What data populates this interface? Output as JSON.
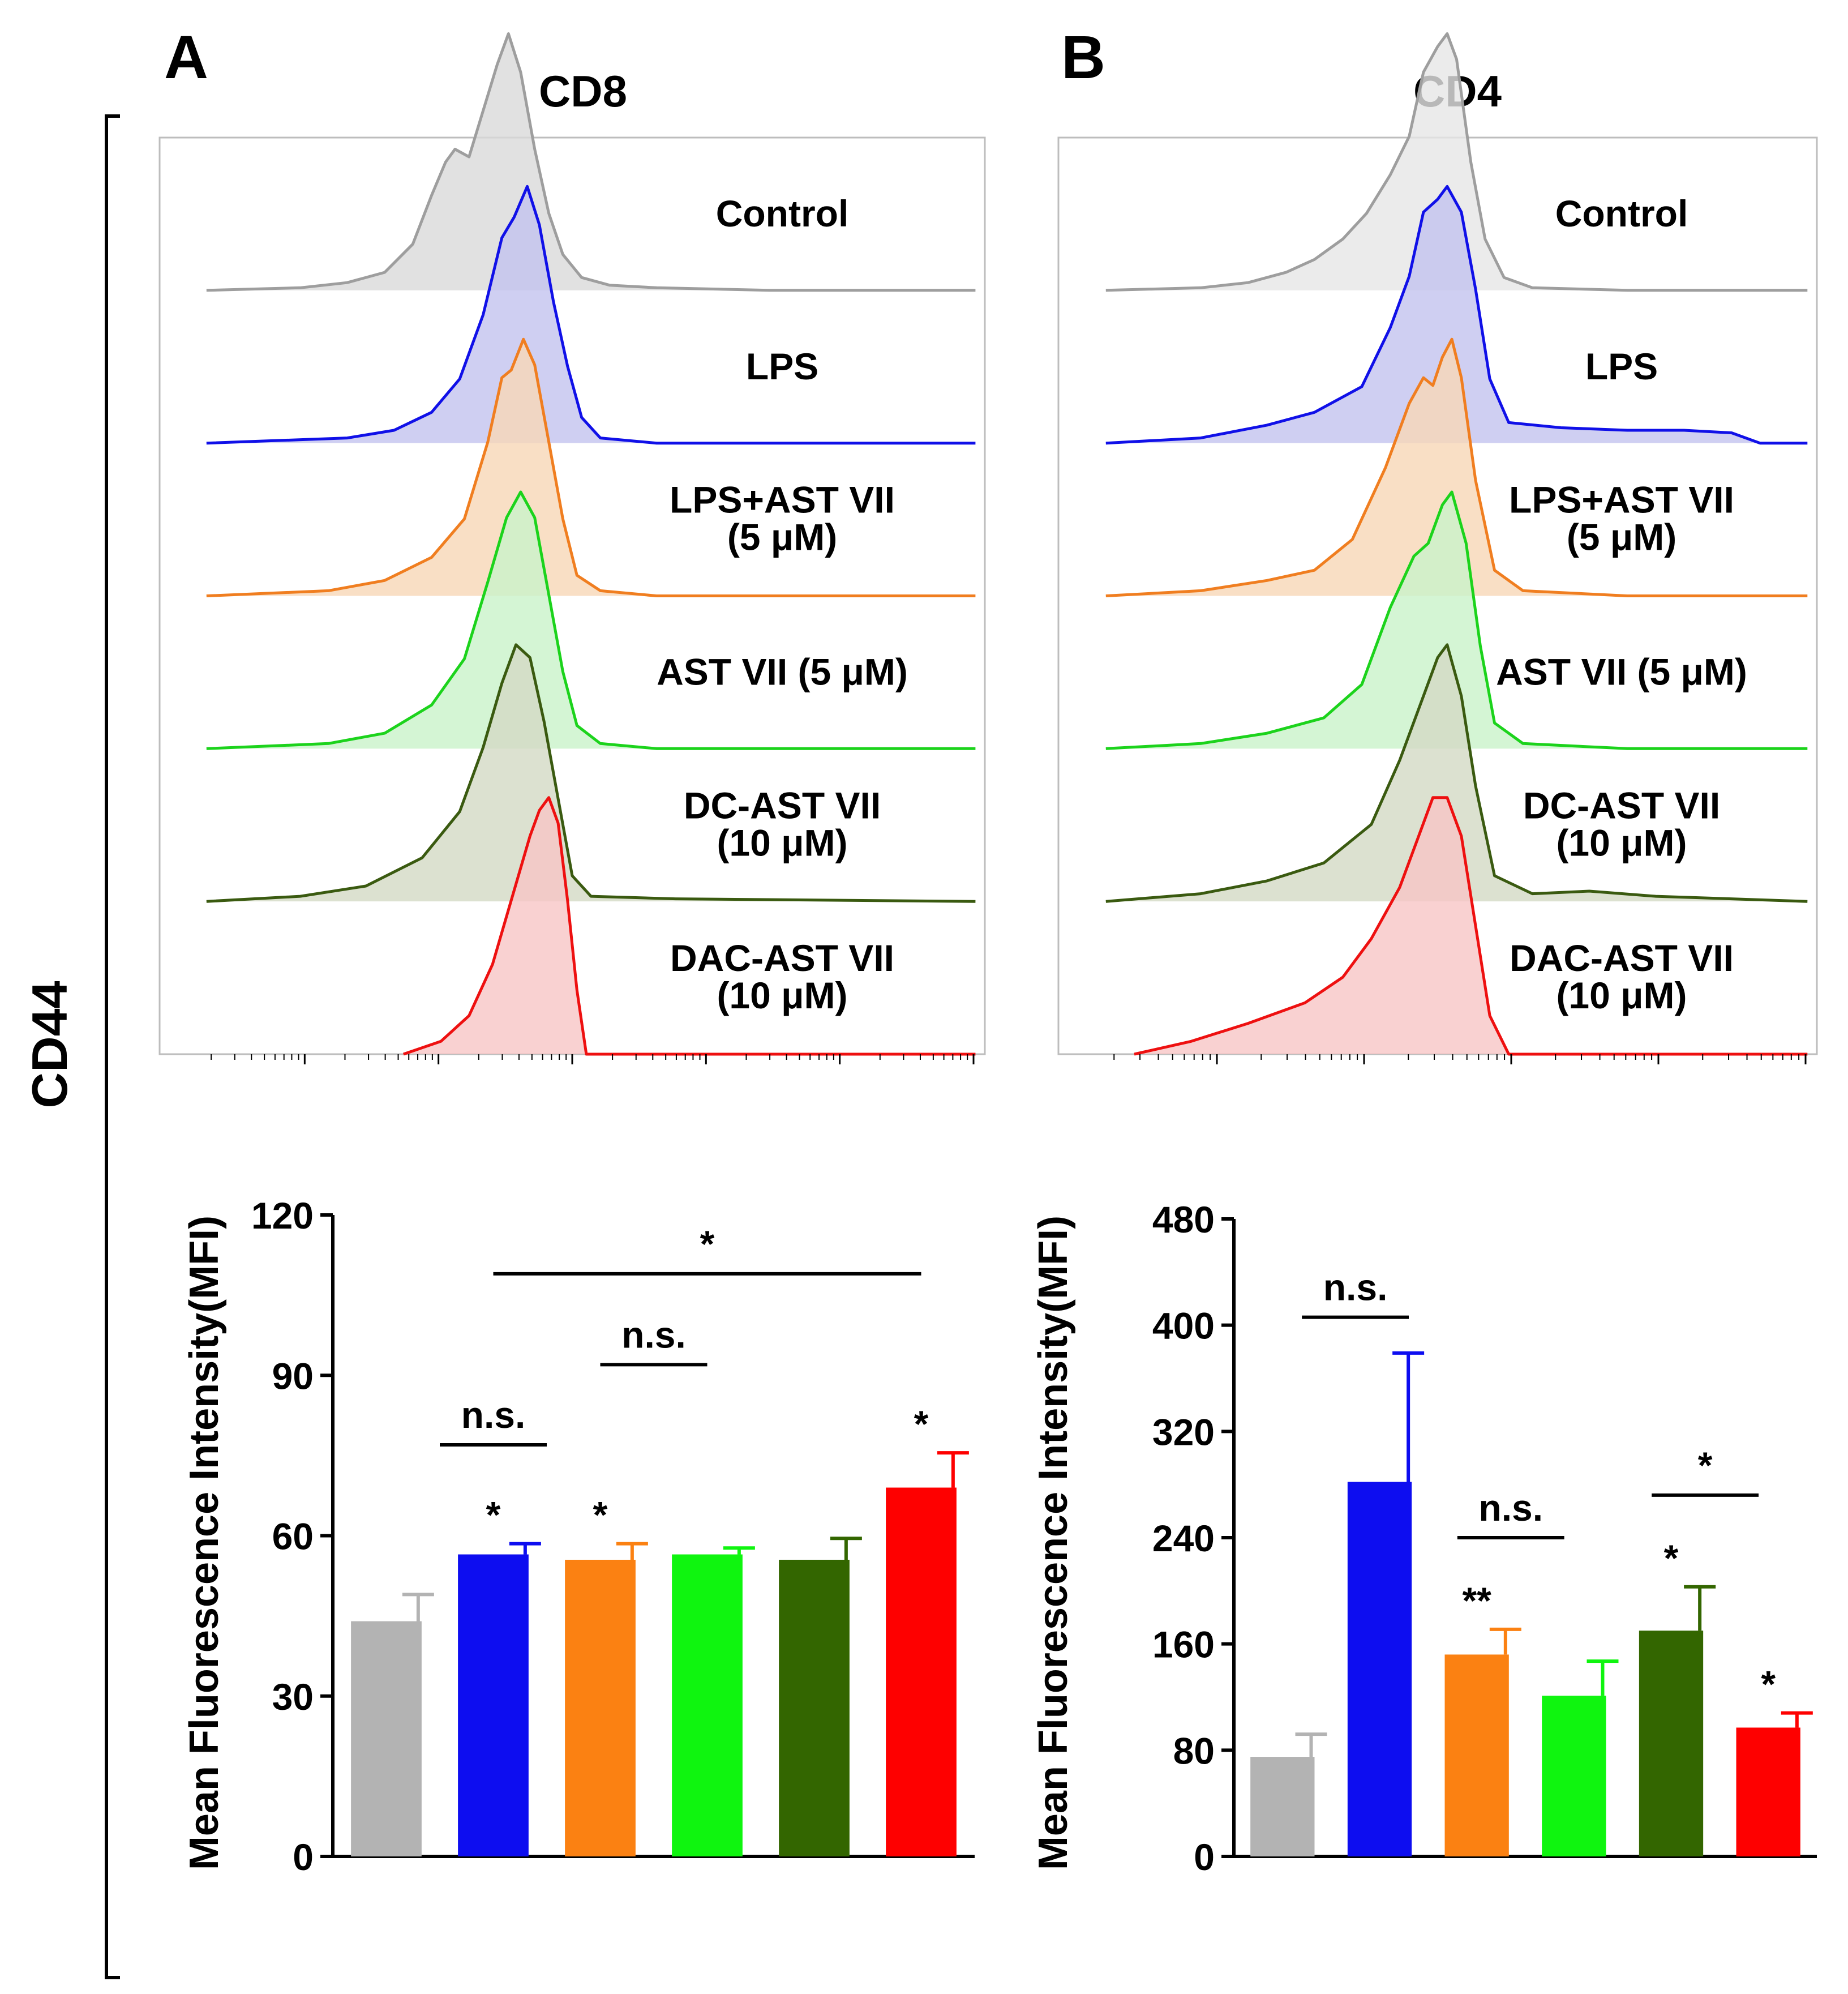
{
  "figure": {
    "y_group_label": "CD44",
    "x_unit_symbol": "μ"
  },
  "chart_data": [
    {
      "type": "area",
      "panel_letter": "A",
      "title": "CD8",
      "xscale": "log",
      "ticks": {
        "major_decades": 6,
        "minor_per_decade": 9
      },
      "series": [
        {
          "name": "Control",
          "color": "#9e9e9e",
          "fill": "#d9d9d9",
          "label": [
            "Control"
          ],
          "curve": [
            [
              -2.5,
              0
            ],
            [
              -1.5,
              0.01
            ],
            [
              -1.0,
              0.03
            ],
            [
              -0.6,
              0.07
            ],
            [
              -0.3,
              0.18
            ],
            [
              -0.1,
              0.37
            ],
            [
              0.05,
              0.5
            ],
            [
              0.15,
              0.55
            ],
            [
              0.3,
              0.52
            ],
            [
              0.45,
              0.7
            ],
            [
              0.6,
              0.88
            ],
            [
              0.72,
              1.0
            ],
            [
              0.85,
              0.85
            ],
            [
              1.0,
              0.55
            ],
            [
              1.15,
              0.3
            ],
            [
              1.3,
              0.14
            ],
            [
              1.5,
              0.05
            ],
            [
              1.8,
              0.02
            ],
            [
              2.3,
              0.01
            ],
            [
              3.5,
              0.0
            ],
            [
              5.7,
              0.0
            ]
          ]
        },
        {
          "name": "LPS",
          "color": "#1010e8",
          "fill": "#c3c3ef",
          "label": [
            "LPS"
          ],
          "curve": [
            [
              -2.5,
              0
            ],
            [
              -1.0,
              0.02
            ],
            [
              -0.5,
              0.05
            ],
            [
              -0.1,
              0.12
            ],
            [
              0.2,
              0.25
            ],
            [
              0.45,
              0.5
            ],
            [
              0.65,
              0.8
            ],
            [
              0.78,
              0.88
            ],
            [
              0.92,
              1.0
            ],
            [
              1.05,
              0.85
            ],
            [
              1.2,
              0.55
            ],
            [
              1.35,
              0.3
            ],
            [
              1.5,
              0.1
            ],
            [
              1.7,
              0.02
            ],
            [
              2.3,
              0.0
            ],
            [
              5.7,
              0.0
            ]
          ]
        },
        {
          "name": "LPS+AST VII (5 μM)",
          "color": "#f07e20",
          "fill": "#f8d7b6",
          "label": [
            "LPS+AST VII",
            "(5 μM)"
          ],
          "curve": [
            [
              -2.5,
              0
            ],
            [
              -1.2,
              0.02
            ],
            [
              -0.6,
              0.06
            ],
            [
              -0.1,
              0.15
            ],
            [
              0.25,
              0.3
            ],
            [
              0.5,
              0.6
            ],
            [
              0.65,
              0.85
            ],
            [
              0.75,
              0.88
            ],
            [
              0.88,
              1.0
            ],
            [
              1.0,
              0.9
            ],
            [
              1.15,
              0.6
            ],
            [
              1.3,
              0.3
            ],
            [
              1.45,
              0.08
            ],
            [
              1.7,
              0.02
            ],
            [
              2.3,
              0.0
            ],
            [
              5.7,
              0.0
            ]
          ]
        },
        {
          "name": "AST VII (5 μM)",
          "color": "#1cd31c",
          "fill": "#c9f3c9",
          "label": [
            "AST VII (5 μM)"
          ],
          "curve": [
            [
              -2.5,
              0
            ],
            [
              -1.2,
              0.02
            ],
            [
              -0.6,
              0.06
            ],
            [
              -0.1,
              0.17
            ],
            [
              0.25,
              0.35
            ],
            [
              0.5,
              0.65
            ],
            [
              0.7,
              0.9
            ],
            [
              0.85,
              1.0
            ],
            [
              1.0,
              0.9
            ],
            [
              1.15,
              0.6
            ],
            [
              1.3,
              0.3
            ],
            [
              1.45,
              0.09
            ],
            [
              1.7,
              0.02
            ],
            [
              2.3,
              0.0
            ],
            [
              5.7,
              0.0
            ]
          ]
        },
        {
          "name": "DC-AST VII (10 μM)",
          "color": "#3a5a10",
          "fill": "#d3d9c4",
          "label": [
            "DC-AST VII",
            "(10 μM)"
          ],
          "curve": [
            [
              -2.5,
              0
            ],
            [
              -1.5,
              0.02
            ],
            [
              -0.8,
              0.06
            ],
            [
              -0.2,
              0.17
            ],
            [
              0.2,
              0.35
            ],
            [
              0.45,
              0.6
            ],
            [
              0.65,
              0.85
            ],
            [
              0.8,
              1.0
            ],
            [
              0.95,
              0.95
            ],
            [
              1.1,
              0.7
            ],
            [
              1.25,
              0.4
            ],
            [
              1.4,
              0.1
            ],
            [
              1.6,
              0.02
            ],
            [
              2.5,
              0.01
            ],
            [
              5.7,
              0.0
            ]
          ]
        },
        {
          "name": "DAC-AST VII (10 μM)",
          "color": "#ee1010",
          "fill": "#f8c6c6",
          "label": [
            "DAC-AST VII",
            "(10 μM)"
          ],
          "curve": [
            [
              -0.4,
              0.0
            ],
            [
              0.0,
              0.05
            ],
            [
              0.3,
              0.15
            ],
            [
              0.55,
              0.35
            ],
            [
              0.75,
              0.6
            ],
            [
              0.95,
              0.85
            ],
            [
              1.05,
              0.95
            ],
            [
              1.15,
              1.0
            ],
            [
              1.25,
              0.9
            ],
            [
              1.35,
              0.6
            ],
            [
              1.45,
              0.25
            ],
            [
              1.55,
              0.0
            ],
            [
              5.7,
              0.0
            ]
          ]
        }
      ]
    },
    {
      "type": "area",
      "panel_letter": "B",
      "title": "CD4",
      "xscale": "log",
      "ticks": {
        "major_decades": 5,
        "minor_per_decade": 9
      },
      "series": [
        {
          "name": "Control",
          "color": "#9e9e9e",
          "fill": "#e6e6e6",
          "label": [
            "Control"
          ],
          "curve": [
            [
              -2.5,
              0
            ],
            [
              -1.5,
              0.01
            ],
            [
              -1.0,
              0.03
            ],
            [
              -0.6,
              0.07
            ],
            [
              -0.3,
              0.12
            ],
            [
              0.0,
              0.2
            ],
            [
              0.25,
              0.3
            ],
            [
              0.5,
              0.45
            ],
            [
              0.7,
              0.6
            ],
            [
              0.85,
              0.85
            ],
            [
              1.0,
              0.95
            ],
            [
              1.1,
              1.0
            ],
            [
              1.2,
              0.9
            ],
            [
              1.35,
              0.5
            ],
            [
              1.5,
              0.2
            ],
            [
              1.7,
              0.05
            ],
            [
              2.0,
              0.01
            ],
            [
              3.0,
              0.0
            ],
            [
              4.9,
              0.0
            ]
          ]
        },
        {
          "name": "LPS",
          "color": "#1010e8",
          "fill": "#c3c3ef",
          "label": [
            "LPS"
          ],
          "curve": [
            [
              -2.5,
              0
            ],
            [
              -1.5,
              0.02
            ],
            [
              -0.8,
              0.07
            ],
            [
              -0.3,
              0.12
            ],
            [
              0.2,
              0.22
            ],
            [
              0.5,
              0.45
            ],
            [
              0.7,
              0.65
            ],
            [
              0.85,
              0.9
            ],
            [
              1.0,
              0.95
            ],
            [
              1.1,
              1.0
            ],
            [
              1.25,
              0.9
            ],
            [
              1.4,
              0.6
            ],
            [
              1.55,
              0.25
            ],
            [
              1.75,
              0.08
            ],
            [
              2.3,
              0.06
            ],
            [
              3.0,
              0.05
            ],
            [
              3.6,
              0.05
            ],
            [
              4.1,
              0.04
            ],
            [
              4.4,
              0.0
            ],
            [
              4.9,
              0.0
            ]
          ]
        },
        {
          "name": "LPS+AST VII (5 μM)",
          "color": "#f07e20",
          "fill": "#f8d7b6",
          "label": [
            "LPS+AST VII",
            "(5 μM)"
          ],
          "curve": [
            [
              -2.5,
              0
            ],
            [
              -1.5,
              0.02
            ],
            [
              -0.8,
              0.06
            ],
            [
              -0.3,
              0.1
            ],
            [
              0.1,
              0.22
            ],
            [
              0.45,
              0.5
            ],
            [
              0.7,
              0.75
            ],
            [
              0.85,
              0.85
            ],
            [
              0.95,
              0.82
            ],
            [
              1.05,
              0.93
            ],
            [
              1.15,
              1.0
            ],
            [
              1.25,
              0.85
            ],
            [
              1.4,
              0.45
            ],
            [
              1.6,
              0.1
            ],
            [
              1.9,
              0.02
            ],
            [
              3.0,
              0.0
            ],
            [
              4.9,
              0.0
            ]
          ]
        },
        {
          "name": "AST VII (5 μM)",
          "color": "#1cd31c",
          "fill": "#c9f3c9",
          "label": [
            "AST VII (5 μM)"
          ],
          "curve": [
            [
              -2.5,
              0
            ],
            [
              -1.5,
              0.02
            ],
            [
              -0.8,
              0.06
            ],
            [
              -0.2,
              0.12
            ],
            [
              0.2,
              0.25
            ],
            [
              0.5,
              0.55
            ],
            [
              0.75,
              0.75
            ],
            [
              0.9,
              0.8
            ],
            [
              1.05,
              0.95
            ],
            [
              1.15,
              1.0
            ],
            [
              1.3,
              0.8
            ],
            [
              1.45,
              0.4
            ],
            [
              1.6,
              0.1
            ],
            [
              1.9,
              0.02
            ],
            [
              3.0,
              0.0
            ],
            [
              4.9,
              0.0
            ]
          ]
        },
        {
          "name": "DC-AST VII (10 μM)",
          "color": "#3a5a10",
          "fill": "#d3d9c4",
          "label": [
            "DC-AST VII",
            "(10 μM)"
          ],
          "curve": [
            [
              -2.5,
              0
            ],
            [
              -1.5,
              0.03
            ],
            [
              -0.8,
              0.08
            ],
            [
              -0.2,
              0.15
            ],
            [
              0.3,
              0.3
            ],
            [
              0.6,
              0.55
            ],
            [
              0.85,
              0.8
            ],
            [
              1.0,
              0.95
            ],
            [
              1.1,
              1.0
            ],
            [
              1.25,
              0.8
            ],
            [
              1.4,
              0.45
            ],
            [
              1.6,
              0.1
            ],
            [
              2.0,
              0.03
            ],
            [
              2.6,
              0.04
            ],
            [
              3.3,
              0.02
            ],
            [
              4.9,
              0.0
            ]
          ]
        },
        {
          "name": "DAC-AST VII (10 μM)",
          "color": "#ee1010",
          "fill": "#f8c6c6",
          "label": [
            "DAC-AST VII",
            "(10 μM)"
          ],
          "curve": [
            [
              -2.2,
              0.0
            ],
            [
              -1.6,
              0.05
            ],
            [
              -1.0,
              0.12
            ],
            [
              -0.4,
              0.2
            ],
            [
              0.0,
              0.3
            ],
            [
              0.3,
              0.45
            ],
            [
              0.6,
              0.65
            ],
            [
              0.8,
              0.85
            ],
            [
              0.95,
              1.0
            ],
            [
              1.1,
              1.0
            ],
            [
              1.25,
              0.85
            ],
            [
              1.4,
              0.5
            ],
            [
              1.55,
              0.15
            ],
            [
              1.75,
              0.0
            ],
            [
              4.9,
              0.0
            ]
          ]
        }
      ]
    },
    {
      "type": "bar",
      "ylabel": "Mean Fluorescence Intensity(MFI)",
      "ylim": [
        0,
        120
      ],
      "yticks": [
        0,
        30,
        60,
        90,
        120
      ],
      "categories": [
        "Control",
        "LPS",
        "LPS+AST VII (5 μM)",
        "AST VII (5 μM)",
        "DC-AST VII (10 μM)",
        "DAC-AST VII (10 μM)"
      ],
      "values": [
        44,
        56.5,
        55.5,
        56.5,
        55.5,
        69
      ],
      "errors": [
        5,
        2,
        3,
        1.2,
        4,
        6.5
      ],
      "colors": [
        "#b3b3b3",
        "#0d0df0",
        "#fb8112",
        "#0ff50f",
        "#336600",
        "#fe0000"
      ],
      "bar_marks": [
        "",
        "*",
        "*",
        "",
        "",
        "*"
      ],
      "brackets": [
        {
          "from": 1,
          "to": 2,
          "y": 77,
          "text": "n.s."
        },
        {
          "from": 2.5,
          "to": 3.5,
          "y": 92,
          "text": "n.s."
        },
        {
          "from": 1.5,
          "to": 5.5,
          "y": 109,
          "text": "*"
        }
      ]
    },
    {
      "type": "bar",
      "ylabel": "Mean Fluorescence Intensity(MFI)",
      "ylim": [
        0,
        480
      ],
      "yticks": [
        0,
        80,
        160,
        240,
        320,
        400,
        480
      ],
      "categories": [
        "Control",
        "LPS",
        "LPS+AST VII (5 μM)",
        "AST VII (5 μM)",
        "DC-AST VII (10 μM)",
        "DAC-AST VII (10 μM)"
      ],
      "values": [
        75,
        282,
        152,
        121,
        170,
        97
      ],
      "errors": [
        17,
        97,
        19,
        26,
        33,
        11
      ],
      "colors": [
        "#b3b3b3",
        "#0d0df0",
        "#fb8112",
        "#0ff50f",
        "#336600",
        "#fe0000"
      ],
      "bar_marks": [
        "",
        "",
        "**",
        "",
        "*",
        "*"
      ],
      "brackets": [
        {
          "from": 0.7,
          "to": 1.8,
          "y": 406,
          "text": "n.s."
        },
        {
          "from": 2.3,
          "to": 3.4,
          "y": 240,
          "text": "n.s."
        },
        {
          "from": 4.3,
          "to": 5.4,
          "y": 272,
          "text": "*"
        }
      ]
    }
  ]
}
